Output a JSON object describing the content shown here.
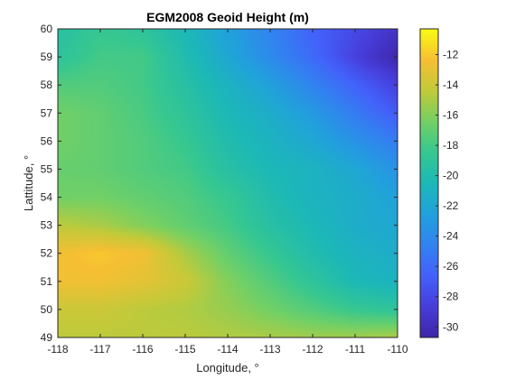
{
  "chart_data": {
    "type": "heatmap",
    "title": "EGM2008 Geoid Height (m)",
    "xlabel": "Longitude, °",
    "ylabel": "Lattitude, °",
    "xlim": [
      -118,
      -110
    ],
    "ylim": [
      49,
      60
    ],
    "x_ticks": [
      -118,
      -117,
      -116,
      -115,
      -114,
      -113,
      -112,
      -111,
      -110
    ],
    "x_tick_labels": [
      "-118",
      "-117",
      "-116",
      "-115",
      "-114",
      "-113",
      "-112",
      "-111",
      "-110"
    ],
    "y_ticks": [
      49,
      50,
      51,
      52,
      53,
      54,
      55,
      56,
      57,
      58,
      59,
      60
    ],
    "y_tick_labels": [
      "49",
      "50",
      "51",
      "52",
      "53",
      "54",
      "55",
      "56",
      "57",
      "58",
      "59",
      "60"
    ],
    "colorbar": {
      "clim": [
        -30.7,
        -10.3
      ],
      "ticks": [
        -30,
        -28,
        -26,
        -24,
        -22,
        -20,
        -18,
        -16,
        -14,
        -12
      ],
      "tick_labels": [
        "-30",
        "-28",
        "-26",
        "-24",
        "-22",
        "-20",
        "-18",
        "-16",
        "-14",
        "-12"
      ],
      "colormap": "parula"
    },
    "grid_x": [
      -118,
      -117,
      -116,
      -115,
      -114,
      -113,
      -112,
      -111,
      -110
    ],
    "grid_y": [
      60,
      59,
      58,
      57,
      56,
      55,
      54,
      53,
      52,
      51,
      50,
      49
    ],
    "z": [
      [
        -19.5,
        -18.5,
        -19.0,
        -20.5,
        -22.5,
        -24.5,
        -26.5,
        -28.0,
        -29.5
      ],
      [
        -19.0,
        -18.0,
        -18.0,
        -20.0,
        -22.0,
        -24.0,
        -26.0,
        -28.5,
        -30.5
      ],
      [
        -17.5,
        -17.5,
        -18.0,
        -19.5,
        -21.0,
        -22.5,
        -24.5,
        -26.5,
        -28.5
      ],
      [
        -16.5,
        -17.0,
        -17.8,
        -19.0,
        -20.5,
        -21.5,
        -23.0,
        -25.0,
        -27.0
      ],
      [
        -16.5,
        -17.0,
        -17.5,
        -18.5,
        -20.0,
        -21.0,
        -22.0,
        -23.5,
        -25.0
      ],
      [
        -16.8,
        -17.0,
        -17.5,
        -18.0,
        -19.5,
        -20.5,
        -21.0,
        -22.0,
        -23.5
      ],
      [
        -16.5,
        -16.5,
        -17.0,
        -17.5,
        -18.5,
        -20.0,
        -21.0,
        -21.5,
        -22.5
      ],
      [
        -14.5,
        -15.0,
        -16.0,
        -17.0,
        -18.0,
        -19.5,
        -20.5,
        -21.5,
        -22.0
      ],
      [
        -12.5,
        -12.0,
        -12.5,
        -15.0,
        -17.0,
        -18.5,
        -20.0,
        -21.0,
        -21.5
      ],
      [
        -12.5,
        -12.5,
        -13.0,
        -14.0,
        -16.0,
        -17.5,
        -19.0,
        -20.5,
        -21.0
      ],
      [
        -14.0,
        -14.0,
        -14.5,
        -14.8,
        -15.5,
        -16.5,
        -17.5,
        -18.5,
        -19.0
      ],
      [
        -14.5,
        -14.5,
        -14.5,
        -14.5,
        -14.8,
        -15.0,
        -15.3,
        -15.3,
        -15.0
      ]
    ]
  }
}
